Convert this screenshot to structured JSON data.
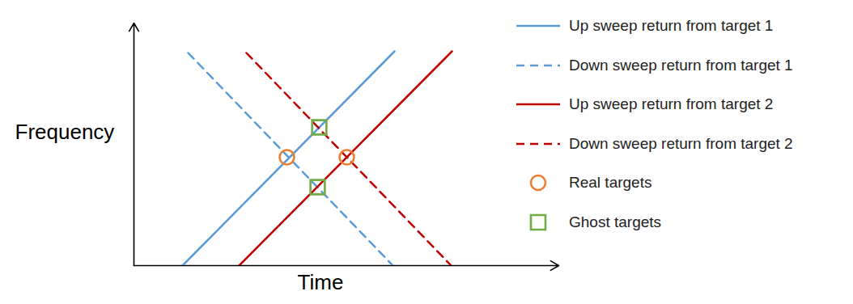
{
  "chart_data": {
    "type": "line",
    "x_label": "Time",
    "y_label": "Frequency",
    "xlim": [
      0,
      52.5
    ],
    "ylim": [
      0,
      30
    ],
    "xticks": [],
    "yticks": [],
    "tick_labels": false,
    "grid": false,
    "legend": "right",
    "series": [
      {
        "name": "Up sweep return from target 1",
        "type": "line",
        "color": "#5b9bd5",
        "line_style": "solid",
        "x": [
          6.0,
          32.2
        ],
        "values": [
          0,
          26.5
        ]
      },
      {
        "name": "Down sweep return from target 1",
        "type": "line",
        "color": "#5b9bd5",
        "line_style": "dashed",
        "x": [
          6.7,
          32.0
        ],
        "values": [
          26.3,
          0
        ]
      },
      {
        "name": "Up sweep return from target 2",
        "type": "line",
        "color": "#c00000",
        "line_style": "solid",
        "x": [
          13.0,
          39.3
        ],
        "values": [
          0,
          26.5
        ]
      },
      {
        "name": "Down sweep return from target 2",
        "type": "line",
        "color": "#c00000",
        "line_style": "dashed",
        "x": [
          13.9,
          39.2
        ],
        "values": [
          26.3,
          0
        ]
      },
      {
        "name": "Real targets",
        "type": "scatter",
        "color": "#ed7d31",
        "marker": "circle",
        "x": [
          18.9,
          26.3
        ],
        "values": [
          13.4,
          13.4
        ]
      },
      {
        "name": "Ghost targets",
        "type": "scatter",
        "color": "#70ad47",
        "marker": "square",
        "x": [
          22.9,
          22.7
        ],
        "values": [
          17.1,
          9.7
        ]
      }
    ]
  }
}
